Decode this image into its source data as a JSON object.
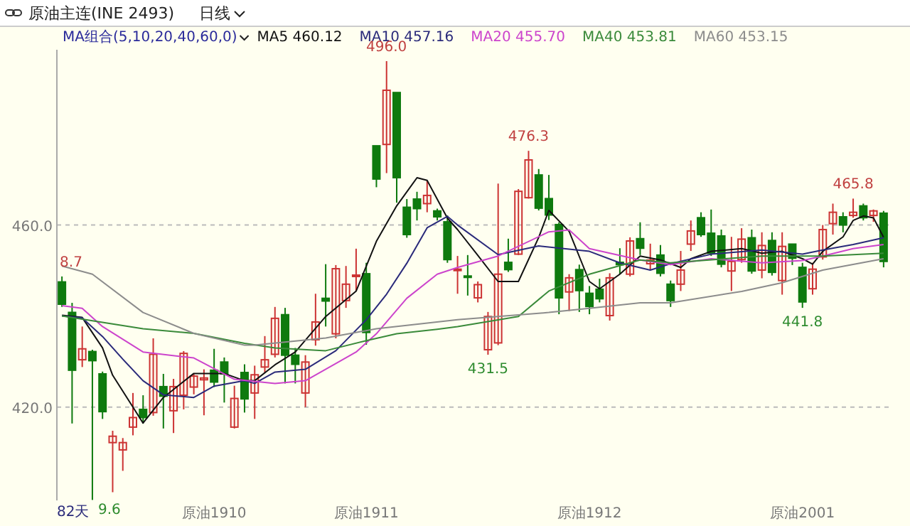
{
  "chart_data": {
    "type": "candlestick",
    "title": "原油主连(INE 2493)",
    "subtitle": "日线",
    "categories": [
      null,
      null,
      null,
      null,
      null,
      null,
      null,
      null,
      null,
      null,
      null,
      null,
      null,
      null,
      null,
      "原油1910",
      null,
      null,
      null,
      null,
      null,
      null,
      null,
      null,
      null,
      null,
      null,
      null,
      null,
      null,
      "原油1911",
      null,
      null,
      null,
      null,
      null,
      null,
      null,
      null,
      null,
      null,
      null,
      null,
      null,
      null,
      null,
      null,
      null,
      null,
      null,
      null,
      null,
      "原油1912",
      null,
      null,
      null,
      null,
      null,
      null,
      null,
      null,
      null,
      null,
      null,
      null,
      null,
      null,
      null,
      null,
      null,
      null,
      null,
      null,
      "原油2001",
      null,
      null,
      null,
      null,
      null,
      null,
      null,
      null
    ],
    "ohlc": [
      [
        447.5,
        448.7,
        442.0,
        442.6
      ],
      [
        440.8,
        442.9,
        416.4,
        428.1
      ],
      [
        430.4,
        437.7,
        428.8,
        432.8
      ],
      [
        432.2,
        432.6,
        399.6,
        430.2
      ],
      [
        427.3,
        427.8,
        417.4,
        419.0
      ],
      [
        412.2,
        414.8,
        401.3,
        413.6
      ],
      [
        410.6,
        413.2,
        406.0,
        412.2
      ],
      [
        415.6,
        423.1,
        413.8,
        417.7
      ],
      [
        419.5,
        422.6,
        416.4,
        417.7
      ],
      [
        418.8,
        435.1,
        418.1,
        431.6
      ],
      [
        424.5,
        427.3,
        415.3,
        422.4
      ],
      [
        419.2,
        426.2,
        414.3,
        424.5
      ],
      [
        422.6,
        432.3,
        419.5,
        431.8
      ],
      [
        424.4,
        427.3,
        422.8,
        426.8
      ],
      [
        426.0,
        428.3,
        418.2,
        426.4
      ],
      [
        428.1,
        432.8,
        424.4,
        425.5
      ],
      [
        429.9,
        430.9,
        421.0,
        427.3
      ],
      [
        415.6,
        424.7,
        415.3,
        421.9
      ],
      [
        427.6,
        429.4,
        418.8,
        421.8
      ],
      [
        423.1,
        429.1,
        417.4,
        427.1
      ],
      [
        428.8,
        435.6,
        427.5,
        430.4
      ],
      [
        431.6,
        442.0,
        430.9,
        439.5
      ],
      [
        440.3,
        441.8,
        425.2,
        431.4
      ],
      [
        431.4,
        433.0,
        425.2,
        429.4
      ],
      [
        423.1,
        431.4,
        420.0,
        429.9
      ],
      [
        434.8,
        444.9,
        433.5,
        438.7
      ],
      [
        443.9,
        451.4,
        437.7,
        443.3
      ],
      [
        436.1,
        451.2,
        435.1,
        450.4
      ],
      [
        443.4,
        451.0,
        441.8,
        447.0
      ],
      [
        448.7,
        454.8,
        445.5,
        449.0
      ],
      [
        449.3,
        451.7,
        433.7,
        436.4
      ],
      [
        477.4,
        477.4,
        468.3,
        470.1
      ],
      [
        477.7,
        496.0,
        471.4,
        489.6
      ],
      [
        489.1,
        489.1,
        464.9,
        470.4
      ],
      [
        463.9,
        465.7,
        457.2,
        457.9
      ],
      [
        465.7,
        467.3,
        461.0,
        463.6
      ],
      [
        464.7,
        469.7,
        462.8,
        466.5
      ],
      [
        463.1,
        463.6,
        461.0,
        461.8
      ],
      [
        460.7,
        462.1,
        451.7,
        452.4
      ],
      [
        450.1,
        453.2,
        444.9,
        450.3
      ],
      [
        448.8,
        453.4,
        444.5,
        448.6
      ],
      [
        444.0,
        447.6,
        443.0,
        446.9
      ],
      [
        432.6,
        440.9,
        431.5,
        439.9
      ],
      [
        434.1,
        469.1,
        433.6,
        449.2
      ],
      [
        451.8,
        457.0,
        449.7,
        450.2
      ],
      [
        453.6,
        467.9,
        453.4,
        467.4
      ],
      [
        466.0,
        476.3,
        465.8,
        474.3
      ],
      [
        471.0,
        472.3,
        463.2,
        463.7
      ],
      [
        465.8,
        471.0,
        461.1,
        462.2
      ],
      [
        460.1,
        460.6,
        440.4,
        444.0
      ],
      [
        445.3,
        449.2,
        441.1,
        448.4
      ],
      [
        450.2,
        451.3,
        440.9,
        445.6
      ],
      [
        445.0,
        446.6,
        440.4,
        442.1
      ],
      [
        445.9,
        448.2,
        443.0,
        443.8
      ],
      [
        440.1,
        449.4,
        439.0,
        448.4
      ],
      [
        451.8,
        454.9,
        449.2,
        451.3
      ],
      [
        449.2,
        457.3,
        448.7,
        456.5
      ],
      [
        457.0,
        460.6,
        453.4,
        454.9
      ],
      [
        451.5,
        455.9,
        450.2,
        452.3
      ],
      [
        453.4,
        455.6,
        448.7,
        449.4
      ],
      [
        447.0,
        447.8,
        442.0,
        443.4
      ],
      [
        447.0,
        454.3,
        445.5,
        450.1
      ],
      [
        455.8,
        461.0,
        454.3,
        458.7
      ],
      [
        461.6,
        462.8,
        457.4,
        457.9
      ],
      [
        458.2,
        463.4,
        453.2,
        453.8
      ],
      [
        457.6,
        459.0,
        450.7,
        451.4
      ],
      [
        449.9,
        457.4,
        445.5,
        452.0
      ],
      [
        452.4,
        459.3,
        451.7,
        456.9
      ],
      [
        457.2,
        459.0,
        449.3,
        449.9
      ],
      [
        450.1,
        458.4,
        448.3,
        455.5
      ],
      [
        456.6,
        458.4,
        448.9,
        449.6
      ],
      [
        447.8,
        458.4,
        444.7,
        455.3
      ],
      [
        455.8,
        455.8,
        451.2,
        452.7
      ],
      [
        450.7,
        451.7,
        441.8,
        443.1
      ],
      [
        446.0,
        451.7,
        444.7,
        450.3
      ],
      [
        453.0,
        460.0,
        452.4,
        459.0
      ],
      [
        460.3,
        464.7,
        457.9,
        462.8
      ],
      [
        461.8,
        462.8,
        458.4,
        460.0
      ],
      [
        462.1,
        465.8,
        461.6,
        462.8
      ],
      [
        464.2,
        464.7,
        461.0,
        461.6
      ],
      [
        462.1,
        463.4,
        460.7,
        463.1
      ],
      [
        462.6,
        463.1,
        450.7,
        452.0
      ]
    ],
    "colors": [
      "#0e7a0e",
      "#0e7a0e",
      "#cc3333",
      "#0e7a0e",
      "#0e7a0e",
      "#cc3333",
      "#cc3333",
      "#cc3333",
      "#0e7a0e",
      "#cc3333",
      "#0e7a0e",
      "#cc3333",
      "#cc3333",
      "#cc3333",
      "#cc3333",
      "#0e7a0e",
      "#0e7a0e",
      "#cc3333",
      "#0e7a0e",
      "#cc3333",
      "#cc3333",
      "#cc3333",
      "#0e7a0e",
      "#0e7a0e",
      "#cc3333",
      "#cc3333",
      "#0e7a0e",
      "#cc3333",
      "#cc3333",
      "#cc3333",
      "#0e7a0e",
      "#0e7a0e",
      "#cc3333",
      "#0e7a0e",
      "#0e7a0e",
      "#0e7a0e",
      "#cc3333",
      "#0e7a0e",
      "#0e7a0e",
      "#cc3333",
      "#0e7a0e",
      "#cc3333",
      "#cc3333",
      "#cc3333",
      "#0e7a0e",
      "#cc3333",
      "#cc3333",
      "#0e7a0e",
      "#0e7a0e",
      "#0e7a0e",
      "#cc3333",
      "#0e7a0e",
      "#0e7a0e",
      "#0e7a0e",
      "#cc3333",
      "#0e7a0e",
      "#cc3333",
      "#0e7a0e",
      "#cc3333",
      "#0e7a0e",
      "#0e7a0e",
      "#cc3333",
      "#cc3333",
      "#0e7a0e",
      "#0e7a0e",
      "#0e7a0e",
      "#cc3333",
      "#cc3333",
      "#0e7a0e",
      "#cc3333",
      "#0e7a0e",
      "#cc3333",
      "#0e7a0e",
      "#0e7a0e",
      "#cc3333",
      "#cc3333",
      "#cc3333",
      "#0e7a0e",
      "#cc3333",
      "#0e7a0e",
      "#cc3333",
      "#0e7a0e"
    ],
    "series": [
      {
        "name": "MA5 460.12",
        "type": "line",
        "color": "#111111",
        "values": [
          440.2,
          null,
          439.7,
          null,
          433.0,
          427.0,
          null,
          420.0,
          416.5,
          null,
          422.1,
          null,
          null,
          427.4,
          null,
          null,
          427.4,
          null,
          425.8,
          425.8,
          null,
          429.3,
          null,
          432.1,
          null,
          null,
          439.9,
          null,
          null,
          445.5,
          null,
          456.4,
          null,
          464.2,
          null,
          470.4,
          469.8,
          null,
          461.5,
          459.0,
          null,
          453.3,
          null,
          447.6,
          null,
          447.6,
          null,
          457.3,
          463.2,
          null,
          458.6,
          null,
          447.6,
          446.0,
          null,
          449.2,
          null,
          453.2,
          null,
          452.3,
          null,
          450.7,
          452.6,
          null,
          454.2,
          null,
          null,
          454.8,
          null,
          453.8,
          null,
          454.2,
          null,
          452.6,
          451.4,
          454.2,
          null,
          457.4,
          461.0,
          462.0,
          461.6,
          457.3
        ]
      },
      {
        "name": "MA10 457.16",
        "type": "line",
        "color": "#2a2a7a",
        "values": [
          440.0,
          null,
          439.6,
          null,
          435.5,
          null,
          430.5,
          null,
          425.8,
          null,
          422.7,
          null,
          null,
          422.1,
          null,
          424.6,
          null,
          null,
          425.8,
          425.2,
          null,
          427.7,
          null,
          null,
          428.3,
          null,
          null,
          432.4,
          null,
          null,
          439.2,
          null,
          444.8,
          null,
          451.6,
          null,
          459.4,
          null,
          461.9,
          460.0,
          null,
          null,
          null,
          453.5,
          null,
          null,
          null,
          455.4,
          null,
          null,
          null,
          null,
          454.2,
          null,
          null,
          451.7,
          null,
          null,
          450.1,
          null,
          451.5,
          null,
          null,
          null,
          453.6,
          null,
          null,
          null,
          null,
          454.5,
          null,
          null,
          null,
          453.6,
          null,
          454.5,
          null,
          null,
          455.7,
          null,
          null,
          457.2
        ]
      },
      {
        "name": "MA20 455.70",
        "type": "line",
        "color": "#cc44cc",
        "values": [
          442.3,
          null,
          441.7,
          null,
          437.7,
          null,
          null,
          null,
          432.1,
          null,
          null,
          null,
          null,
          430.8,
          null,
          null,
          null,
          426.1,
          null,
          null,
          null,
          425.2,
          null,
          null,
          425.8,
          null,
          null,
          null,
          null,
          432.1,
          null,
          436.1,
          null,
          null,
          443.9,
          null,
          null,
          449.2,
          null,
          450.7,
          null,
          null,
          null,
          453.2,
          null,
          null,
          null,
          null,
          458.5,
          null,
          458.9,
          null,
          454.8,
          null,
          null,
          null,
          null,
          452.3,
          null,
          null,
          451.3,
          null,
          null,
          null,
          452.6,
          null,
          null,
          null,
          null,
          451.7,
          null,
          null,
          null,
          452.2,
          null,
          453.2,
          null,
          null,
          454.8,
          null,
          null,
          455.7
        ]
      },
      {
        "name": "MA40 453.81",
        "type": "line",
        "color": "#3a8a3a",
        "values": [
          440.0,
          null,
          null,
          null,
          null,
          null,
          null,
          null,
          437.2,
          null,
          null,
          null,
          null,
          436.2,
          null,
          null,
          null,
          null,
          434.0,
          null,
          null,
          433.0,
          null,
          null,
          null,
          null,
          432.4,
          null,
          null,
          null,
          434.6,
          null,
          null,
          436.1,
          null,
          null,
          null,
          437.1,
          null,
          437.7,
          null,
          null,
          null,
          null,
          null,
          439.9,
          null,
          null,
          445.5,
          null,
          null,
          null,
          449.2,
          null,
          null,
          null,
          null,
          452.3,
          null,
          null,
          451.7,
          null,
          null,
          null,
          null,
          null,
          null,
          null,
          null,
          453.2,
          null,
          null,
          null,
          null,
          null,
          453.2,
          null,
          null,
          null,
          null,
          null,
          453.8
        ]
      },
      {
        "name": "MA60 453.15",
        "type": "line",
        "color": "#8c8c8c",
        "values": [
          451.0,
          null,
          null,
          449.2,
          null,
          null,
          null,
          null,
          440.8,
          null,
          null,
          null,
          null,
          436.2,
          null,
          null,
          null,
          null,
          433.6,
          433.6,
          null,
          null,
          null,
          null,
          null,
          null,
          435.2,
          null,
          null,
          null,
          null,
          437.2,
          null,
          null,
          null,
          null,
          null,
          null,
          null,
          439.2,
          null,
          null,
          null,
          null,
          null,
          null,
          null,
          null,
          440.8,
          null,
          null,
          null,
          441.7,
          null,
          null,
          null,
          null,
          442.9,
          null,
          null,
          442.9,
          null,
          null,
          null,
          null,
          null,
          null,
          445.4,
          null,
          null,
          null,
          447.3,
          null,
          null,
          null,
          450.1,
          null,
          null,
          null,
          null,
          null,
          452.6
        ]
      }
    ],
    "ylim": [
      399.5,
      498.5
    ],
    "yticks": [
      {
        "value": 420,
        "label": "420.0"
      },
      {
        "value": 460,
        "label": "460.0"
      }
    ],
    "grid": "y",
    "legend": "top",
    "annotations": [
      "MA组合(5,10,20,40,60,0)",
      "82天",
      "8.7",
      "9.6",
      "496.0",
      "431.5",
      "476.3",
      "441.8",
      "465.8"
    ]
  }
}
